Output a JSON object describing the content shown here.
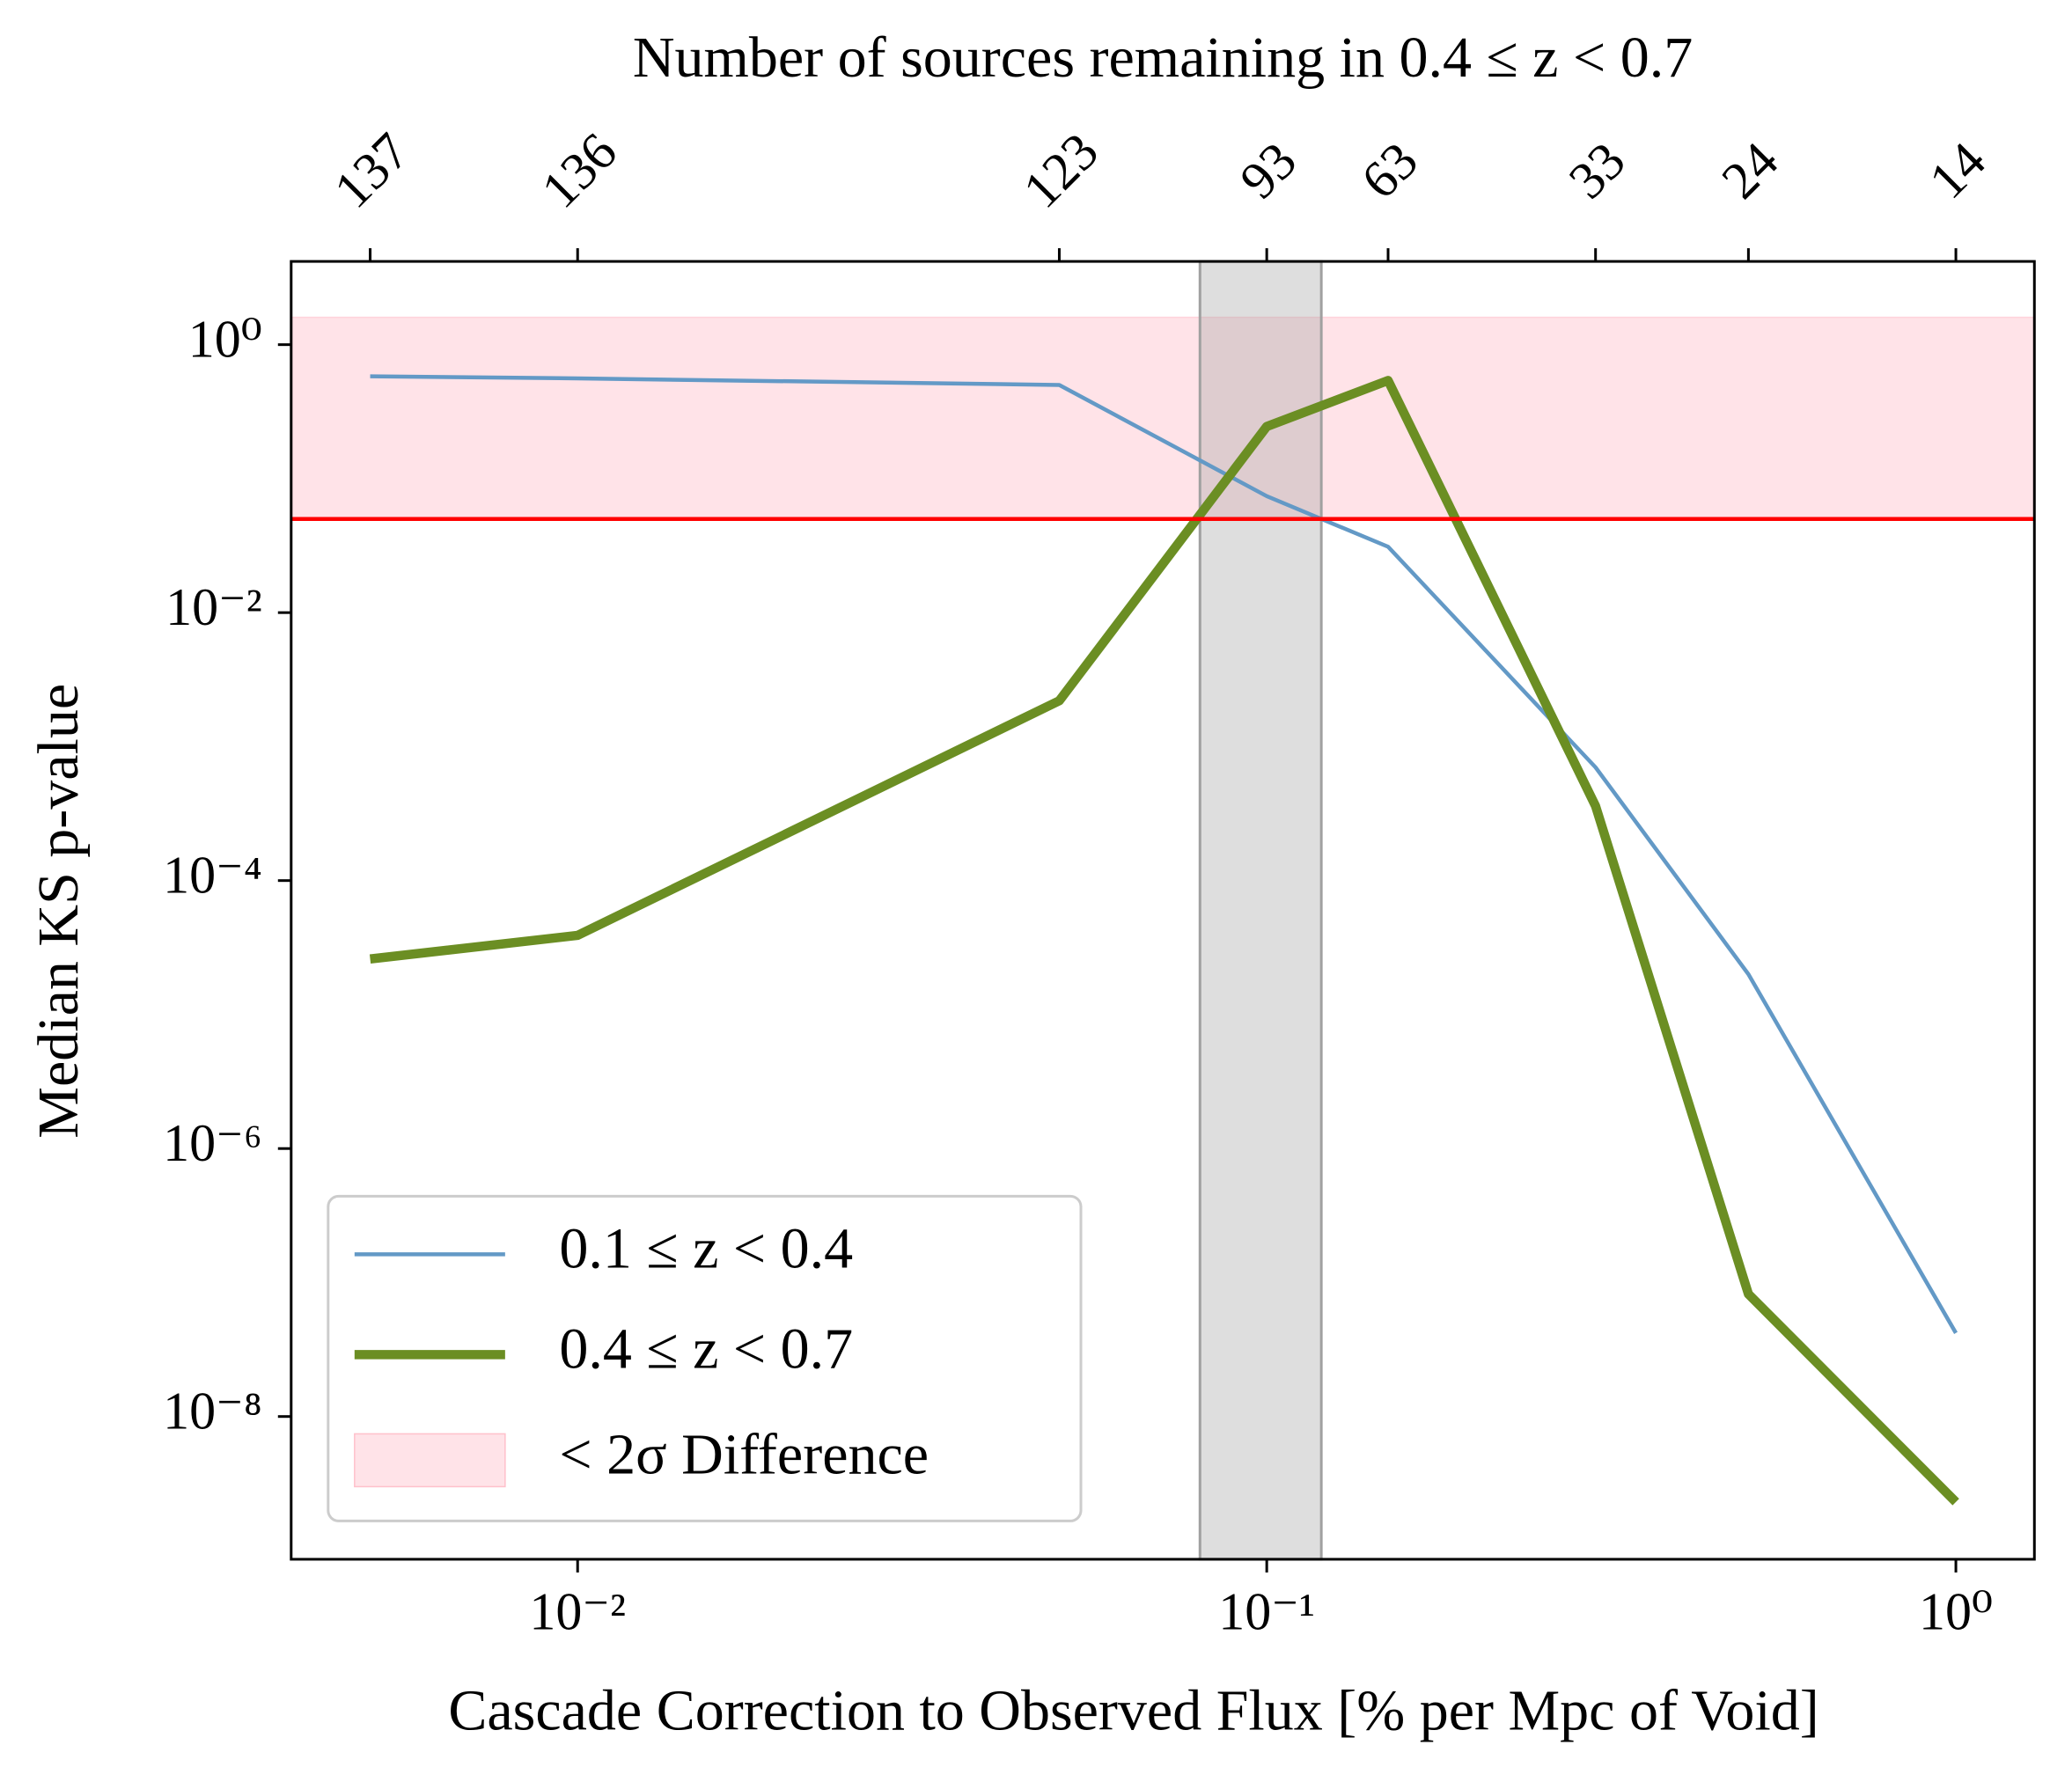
{
  "chart_data": {
    "type": "line",
    "xlabel": "Cascade Correction to Observed Flux [% per Mpc of Void]",
    "ylabel": "Median KS p-value",
    "x": [
      0.005,
      0.01,
      0.05,
      0.1,
      0.15,
      0.3,
      0.5,
      1
    ],
    "series": [
      {
        "name": "0.1 ≤ z < 0.4",
        "color": "#6399c6",
        "width": 3,
        "values": [
          0.58,
          0.56,
          0.5,
          0.074,
          0.031,
          0.0007,
          2e-05,
          4.2e-08
        ]
      },
      {
        "name": "0.4 ≤ z < 0.7",
        "color": "#6b8e23",
        "width": 7,
        "values": [
          2.6e-05,
          3.9e-05,
          0.0022,
          0.245,
          0.54,
          0.00036,
          8.2e-08,
          2.3e-09
        ]
      }
    ],
    "xlim": [
      0.00384,
      1.3
    ],
    "ylim": [
      8.6e-10,
      4.18
    ],
    "xscale": "log",
    "yscale": "log",
    "xticks": [
      {
        "value": 0.01,
        "label": "10⁻²"
      },
      {
        "value": 0.1,
        "label": "10⁻¹"
      },
      {
        "value": 1,
        "label": "10⁰"
      }
    ],
    "yticks": [
      {
        "value": 1,
        "label": "10⁰"
      },
      {
        "value": 0.01,
        "label": "10⁻²"
      },
      {
        "value": 0.0001,
        "label": "10⁻⁴"
      },
      {
        "value": 1e-06,
        "label": "10⁻⁶"
      },
      {
        "value": 1e-08,
        "label": "10⁻⁸"
      }
    ],
    "top_axis": {
      "label": "Number of sources remaining in 0.4 ≤ z < 0.7",
      "ticks": [
        {
          "value": 0.005,
          "label": "137"
        },
        {
          "value": 0.01,
          "label": "136"
        },
        {
          "value": 0.05,
          "label": "123"
        },
        {
          "value": 0.1,
          "label": "93"
        },
        {
          "value": 0.15,
          "label": "63"
        },
        {
          "value": 0.3,
          "label": "33"
        },
        {
          "value": 0.5,
          "label": "24"
        },
        {
          "value": 1,
          "label": "14"
        }
      ]
    },
    "y_band": {
      "name": "< 2σ Difference",
      "range": [
        0.05,
        1.6
      ],
      "color": "#ffc0cb"
    },
    "x_band": {
      "range": [
        0.08,
        0.12
      ],
      "color": "#a0a0a0"
    },
    "hline": {
      "value": 0.05,
      "color": "#ff0000"
    },
    "legend": "lower left"
  }
}
